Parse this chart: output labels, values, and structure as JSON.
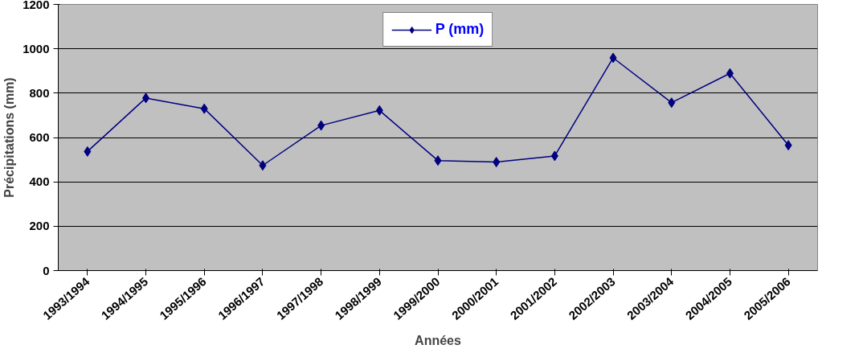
{
  "chart_data": {
    "type": "line",
    "xlabel": "Années",
    "ylabel": "Précipitations (mm)",
    "categories": [
      "1993/1994",
      "1994/1995",
      "1995/1996",
      "1996/1997",
      "1997/1998",
      "1998/1999",
      "1999/2000",
      "2000/2001",
      "2001/2002",
      "2002/2003",
      "2003/2004",
      "2004/2005",
      "2005/2006"
    ],
    "series": [
      {
        "name": "P (mm)",
        "color": "#000080",
        "values": [
          537,
          778,
          730,
          474,
          654,
          722,
          496,
          489,
          517,
          959,
          757,
          889,
          565
        ]
      }
    ],
    "ylim": [
      0,
      1200
    ],
    "yticks": [
      0,
      200,
      400,
      600,
      800,
      1000,
      1200
    ],
    "grid": "y",
    "legend": "top",
    "marker": "diamond",
    "line_style": "solid"
  }
}
